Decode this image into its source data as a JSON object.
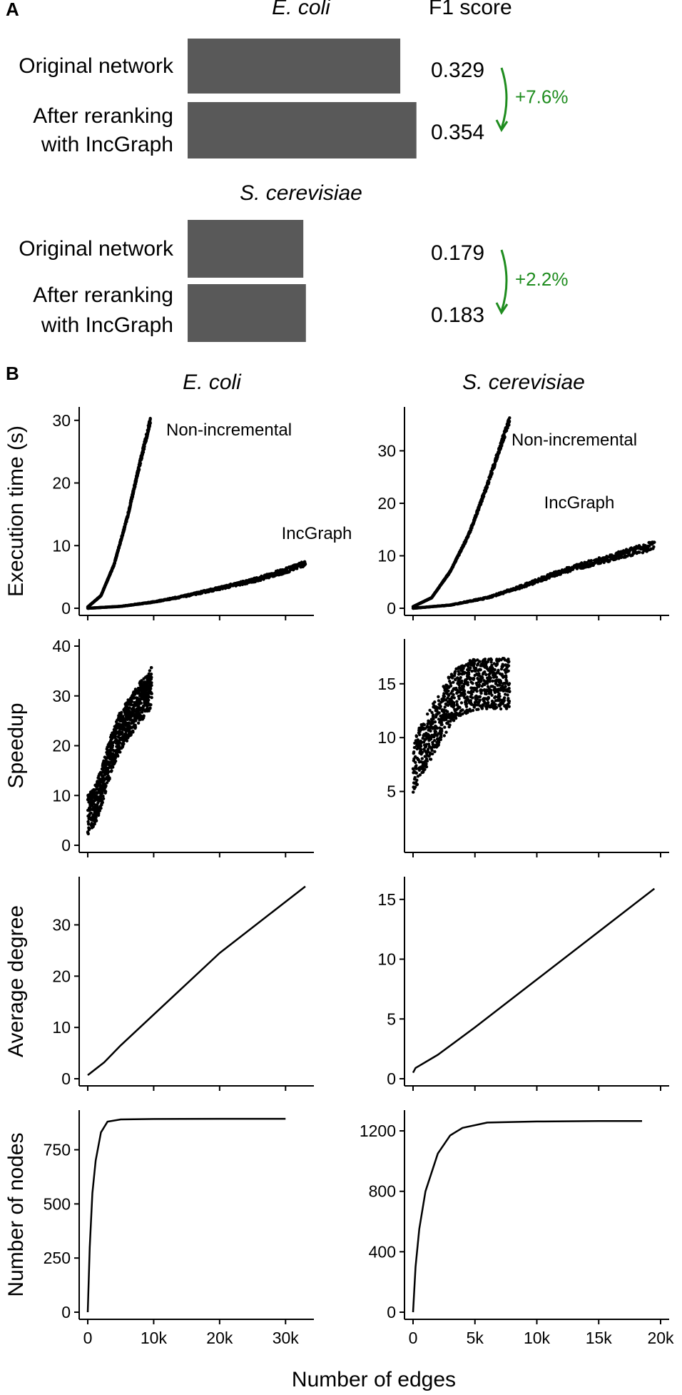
{
  "colors": {
    "bar": "#595959",
    "points": "#000000",
    "gain_arrow": "#1e8c1e",
    "axis": "#000000"
  },
  "panel_a": {
    "letter": "A",
    "f1_header": "F1 score",
    "groups": [
      {
        "organism": "E. coli",
        "bars": [
          {
            "label_lines": [
              "Original network"
            ],
            "f1": 0.329,
            "value_label": "0.329"
          },
          {
            "label_lines": [
              "After reranking",
              "with IncGraph"
            ],
            "f1": 0.354,
            "value_label": "0.354"
          }
        ],
        "gain_label": "+7.6%"
      },
      {
        "organism": "S. cerevisiae",
        "bars": [
          {
            "label_lines": [
              "Original network"
            ],
            "f1": 0.179,
            "value_label": "0.179"
          },
          {
            "label_lines": [
              "After reranking",
              "with IncGraph"
            ],
            "f1": 0.183,
            "value_label": "0.183"
          }
        ],
        "gain_label": "+2.2%"
      }
    ]
  },
  "panel_b": {
    "letter": "B",
    "column_titles": [
      "E. coli",
      "S. cerevisiae"
    ],
    "x_label": "Number of edges",
    "row_labels": [
      "Execution time (s)",
      "Speedup",
      "Average degree",
      "Number of nodes"
    ],
    "curve_labels": {
      "non_incremental": "Non-incremental",
      "incgraph": "IncGraph"
    }
  },
  "chart_data": [
    {
      "type": "bar",
      "panel": "A",
      "title": "E. coli",
      "categories": [
        "Original network",
        "After reranking with IncGraph"
      ],
      "values": [
        0.329,
        0.354
      ],
      "value_header": "F1 score",
      "annotation": "+7.6%"
    },
    {
      "type": "bar",
      "panel": "A",
      "title": "S. cerevisiae",
      "categories": [
        "Original network",
        "After reranking with IncGraph"
      ],
      "values": [
        0.179,
        0.183
      ],
      "value_header": "F1 score",
      "annotation": "+2.2%"
    },
    {
      "type": "scatter",
      "panel": "B",
      "title": "E. coli",
      "ylabel": "Execution time (s)",
      "x_ticks": [
        "0",
        "10k",
        "20k",
        "30k"
      ],
      "y_ticks": [
        "0",
        "10",
        "20",
        "30"
      ],
      "xlim": [
        0,
        33000
      ],
      "ylim": [
        0,
        31
      ],
      "series": [
        {
          "name": "Non-incremental",
          "x": [
            0,
            2000,
            4000,
            6000,
            8000,
            9500
          ],
          "y": [
            0.2,
            2,
            7,
            14.5,
            23.5,
            30
          ]
        },
        {
          "name": "IncGraph",
          "x": [
            0,
            5000,
            10000,
            15000,
            20000,
            25000,
            30000,
            33000
          ],
          "y": [
            0,
            0.3,
            1,
            2,
            3.2,
            4.4,
            6,
            7.2
          ]
        }
      ]
    },
    {
      "type": "scatter",
      "panel": "B",
      "title": "S. cerevisiae",
      "ylabel": "Execution time (s)",
      "x_ticks": [
        "0",
        "5k",
        "10k",
        "15k",
        "20k"
      ],
      "y_ticks": [
        "0",
        "10",
        "20",
        "30"
      ],
      "xlim": [
        0,
        20000
      ],
      "ylim": [
        0,
        37
      ],
      "series": [
        {
          "name": "Non-incremental",
          "x": [
            0,
            1500,
            3000,
            4500,
            6000,
            7800
          ],
          "y": [
            0.3,
            2,
            7,
            14,
            23.5,
            36
          ]
        },
        {
          "name": "IncGraph",
          "x": [
            0,
            3000,
            6000,
            9000,
            12000,
            15000,
            18000,
            19500
          ],
          "y": [
            0,
            0.6,
            2,
            4.3,
            7,
            9,
            11,
            12
          ]
        }
      ]
    },
    {
      "type": "scatter",
      "panel": "B",
      "title": "E. coli",
      "ylabel": "Speedup",
      "y_ticks": [
        "0",
        "10",
        "20",
        "30",
        "40"
      ],
      "xlim": [
        0,
        33000
      ],
      "ylim": [
        0,
        40
      ],
      "x": [
        0,
        1000,
        2000,
        3000,
        4000,
        5000,
        6000,
        7000,
        8000,
        9000,
        9700
      ],
      "y": [
        6,
        8,
        11,
        16,
        20,
        23,
        25,
        27,
        29,
        30,
        32
      ]
    },
    {
      "type": "scatter",
      "panel": "B",
      "title": "S. cerevisiae",
      "ylabel": "Speedup",
      "y_ticks": [
        "5",
        "10",
        "15"
      ],
      "xlim": [
        0,
        20000
      ],
      "ylim": [
        0,
        18.5
      ],
      "x": [
        0,
        500,
        1000,
        1500,
        2000,
        2500,
        3000,
        4000,
        5000,
        6000,
        7000,
        7800
      ],
      "y": [
        7,
        8.5,
        9.5,
        10.5,
        11.5,
        12.5,
        13.5,
        14.5,
        15,
        15,
        15,
        15
      ]
    },
    {
      "type": "line",
      "panel": "B",
      "title": "E. coli",
      "ylabel": "Average degree",
      "y_ticks": [
        "0",
        "10",
        "20",
        "30"
      ],
      "xlim": [
        0,
        33000
      ],
      "ylim": [
        0,
        38
      ],
      "x": [
        0,
        2500,
        5000,
        10000,
        20000,
        33000
      ],
      "y": [
        0.7,
        3.2,
        6.5,
        12.5,
        24.5,
        37.5
      ]
    },
    {
      "type": "line",
      "panel": "B",
      "title": "S. cerevisiae",
      "ylabel": "Average degree",
      "y_ticks": [
        "0",
        "5",
        "10",
        "15"
      ],
      "xlim": [
        0,
        20000
      ],
      "ylim": [
        0,
        16.3
      ],
      "x": [
        0,
        200,
        2000,
        5000,
        10000,
        15000,
        19500
      ],
      "y": [
        0.5,
        0.9,
        2,
        4.3,
        8.3,
        12.3,
        15.9
      ]
    },
    {
      "type": "line",
      "panel": "B",
      "title": "E. coli",
      "ylabel": "Number of nodes",
      "xlabel": "Number of edges",
      "x_ticks": [
        "0",
        "10k",
        "20k",
        "30k"
      ],
      "y_ticks": [
        "0",
        "250",
        "500",
        "750"
      ],
      "xlim": [
        0,
        33000
      ],
      "ylim": [
        0,
        900
      ],
      "x": [
        0,
        300,
        700,
        1200,
        2000,
        3000,
        5000,
        10000,
        20000,
        30000
      ],
      "y": [
        0,
        300,
        550,
        700,
        830,
        880,
        890,
        892,
        893,
        893
      ]
    },
    {
      "type": "line",
      "panel": "B",
      "title": "S. cerevisiae",
      "ylabel": "Number of nodes",
      "xlabel": "Number of edges",
      "x_ticks": [
        "0",
        "5k",
        "10k",
        "15k",
        "20k"
      ],
      "y_ticks": [
        "0",
        "400",
        "800",
        "1200"
      ],
      "xlim": [
        0,
        20000
      ],
      "ylim": [
        0,
        1290
      ],
      "x": [
        0,
        200,
        500,
        1000,
        2000,
        3000,
        4000,
        6000,
        10000,
        15000,
        18500
      ],
      "y": [
        0,
        300,
        550,
        800,
        1050,
        1170,
        1220,
        1255,
        1262,
        1265,
        1265
      ]
    }
  ]
}
